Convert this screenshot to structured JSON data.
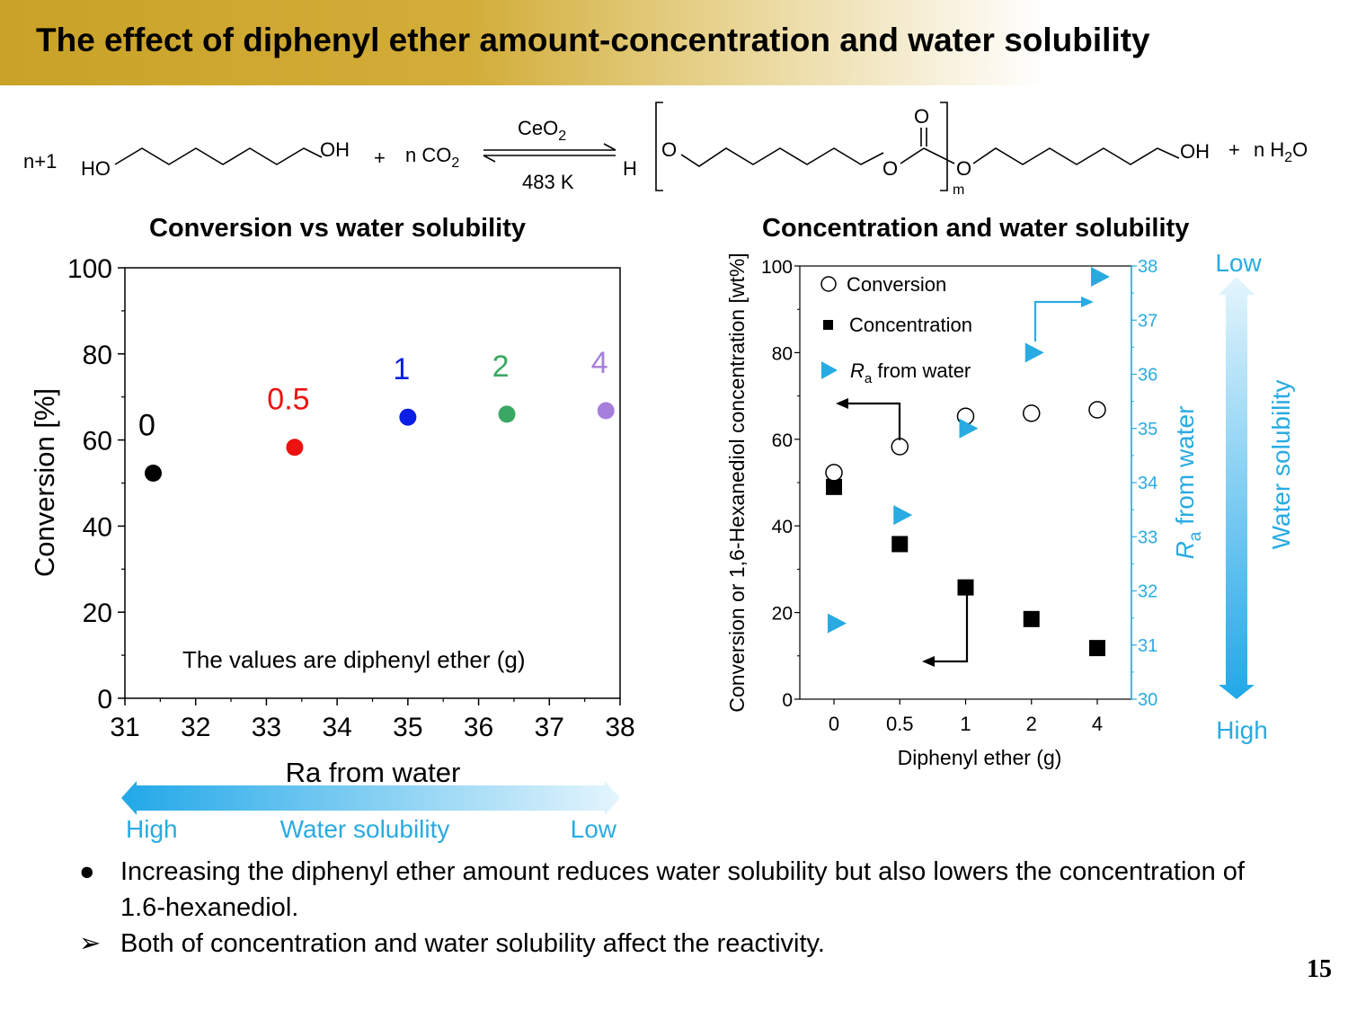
{
  "slide": {
    "title": "The effect of diphenyl ether amount-concentration and water solubility",
    "page_number": "15"
  },
  "scheme": {
    "coef_left": "n+1",
    "reactant_ho": "HO",
    "reactant_oh": "OH",
    "plus1": "+",
    "co2": "n CO",
    "co2_sub": "2",
    "catalyst": "CeO",
    "catalyst_sub": "2",
    "temperature": "483 K",
    "h_end": "H",
    "o1": "O",
    "o2": "O",
    "o_carbonyl": "O",
    "o3": "O",
    "m": "m",
    "oh_end": "OH",
    "plus2": "+",
    "water": "n H",
    "water_sub": "2",
    "water_o": "O"
  },
  "left_chart": {
    "arrow_high": "High",
    "arrow_label": "Water solubility",
    "arrow_low": "Low"
  },
  "right_chart": {
    "arrow_low": "Low",
    "arrow_label": "Water solubility",
    "arrow_high": "High"
  },
  "chart_data": [
    {
      "type": "scatter",
      "title": "Conversion vs water solubility",
      "xlabel": "Ra from water",
      "ylabel": "Conversion [%]",
      "xlim": [
        31,
        38
      ],
      "ylim": [
        0,
        100
      ],
      "xticks": [
        "31",
        "32",
        "33",
        "34",
        "35",
        "36",
        "37",
        "38"
      ],
      "yticks": [
        "0",
        "20",
        "40",
        "60",
        "80",
        "100"
      ],
      "annotation": "The values are diphenyl ether (g)",
      "points": [
        {
          "label": "0",
          "x": 31.4,
          "y": 52.3,
          "color": "#000000"
        },
        {
          "label": "0.5",
          "x": 33.4,
          "y": 58.3,
          "color": "#ee1111"
        },
        {
          "label": "1",
          "x": 35.0,
          "y": 65.3,
          "color": "#0b1ee6"
        },
        {
          "label": "2",
          "x": 36.4,
          "y": 66.0,
          "color": "#3aa864"
        },
        {
          "label": "4",
          "x": 37.8,
          "y": 66.8,
          "color": "#a67fdc"
        }
      ]
    },
    {
      "type": "scatter",
      "title": "Concentration and water solubility",
      "xlabel": "Diphenyl ether (g)",
      "ylabel": "Conversion or 1,6-Hexanediol concentration [wt%]",
      "y2label_italic": "R",
      "y2label_sub": "a",
      "y2label_rest": " from water",
      "categories": [
        "0",
        "0.5",
        "1",
        "2",
        "4"
      ],
      "ylim": [
        0,
        100
      ],
      "yticks": [
        "0",
        "20",
        "40",
        "60",
        "80",
        "100"
      ],
      "y2lim": [
        30,
        38
      ],
      "y2ticks": [
        "30",
        "31",
        "32",
        "33",
        "34",
        "35",
        "36",
        "37",
        "38"
      ],
      "legend_placement": "top-left",
      "series": [
        {
          "name": "Conversion",
          "axis": "left",
          "marker": "open-circle",
          "values": [
            52.3,
            58.3,
            65.3,
            66.0,
            66.8
          ]
        },
        {
          "name": "Concentration",
          "axis": "left",
          "marker": "filled-square",
          "values": [
            49.0,
            35.8,
            25.8,
            18.5,
            11.8
          ]
        },
        {
          "name_italic": "R",
          "name_sub": "a",
          "name": " from water",
          "axis": "right",
          "marker": "triangle-right",
          "color": "#29abe2",
          "values": [
            31.4,
            33.4,
            35.0,
            36.4,
            37.8
          ]
        }
      ]
    }
  ],
  "bullets": [
    {
      "marker": "●",
      "text": "Increasing the diphenyl ether amount reduces water solubility but also lowers the concentration of 1.6-hexanediol."
    },
    {
      "marker": "➢",
      "text": "Both of concentration and water solubility affect the reactivity."
    }
  ]
}
